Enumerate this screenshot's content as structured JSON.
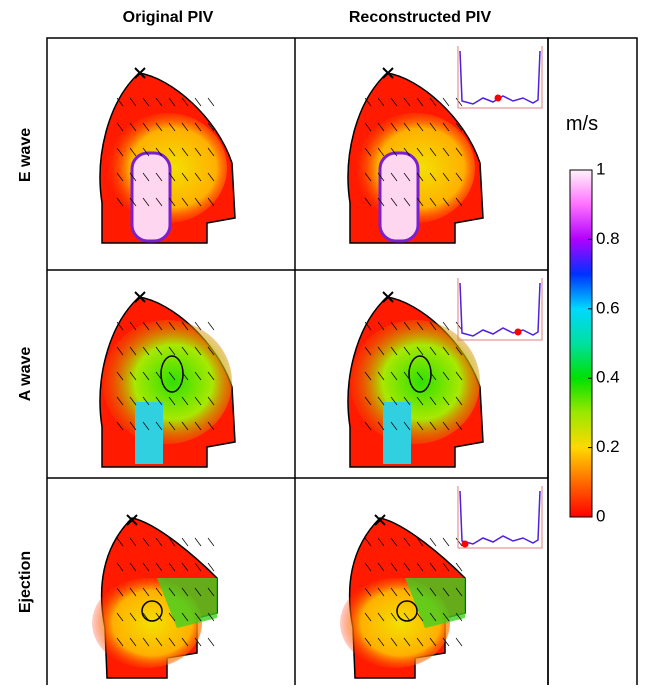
{
  "columns": [
    "Original PIV",
    "Reconstructed PIV"
  ],
  "rows": [
    "E wave",
    "A wave",
    "Ejection"
  ],
  "colorbar": {
    "label": "m/s",
    "lim": [
      0,
      1
    ],
    "ticks": [
      0,
      0.2,
      0.4,
      0.6,
      0.8,
      1
    ]
  }
}
